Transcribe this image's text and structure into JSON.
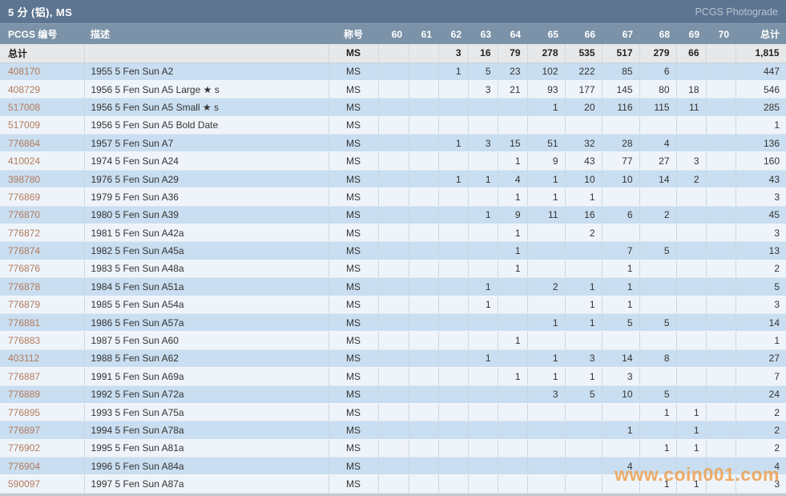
{
  "title_bar": {
    "title": "5 分 (铝), MS",
    "right_label": "PCGS Photograde"
  },
  "watermark": "www.coin001.com",
  "colors": {
    "title_bar_bg": "#5d7591",
    "header_bg": "#7b92a8",
    "total_row_bg": "#e7e8ea",
    "row_odd_bg": "#c9def0",
    "row_even_bg": "#eef4fa",
    "pcgs_link": "#b4795b",
    "watermark": "#efa254"
  },
  "table": {
    "headers": {
      "pcgs": "PCGS 编号",
      "desc": "描述",
      "designation": "称号",
      "total": "总计"
    },
    "grade_columns": [
      "60",
      "61",
      "62",
      "63",
      "64",
      "65",
      "66",
      "67",
      "68",
      "69",
      "70"
    ],
    "total_row": {
      "label": "总计",
      "designation": "MS",
      "grades": {
        "62": "3",
        "63": "16",
        "64": "79",
        "65": "278",
        "66": "535",
        "67": "517",
        "68": "279",
        "69": "66"
      },
      "total": "1,815"
    },
    "rows": [
      {
        "pcgs": "408170",
        "desc": "1955 5 Fen Sun A2",
        "designation": "MS",
        "grades": {
          "62": "1",
          "63": "5",
          "64": "23",
          "65": "102",
          "66": "222",
          "67": "85",
          "68": "6"
        },
        "total": "447"
      },
      {
        "pcgs": "408729",
        "desc": "1956 5 Fen Sun A5 Large ★ s",
        "designation": "MS",
        "grades": {
          "63": "3",
          "64": "21",
          "65": "93",
          "66": "177",
          "67": "145",
          "68": "80",
          "69": "18"
        },
        "total": "546"
      },
      {
        "pcgs": "517008",
        "desc": "1956 5 Fen Sun A5 Small ★ s",
        "designation": "MS",
        "grades": {
          "65": "1",
          "66": "20",
          "67": "116",
          "68": "115",
          "69": "11"
        },
        "total": "285"
      },
      {
        "pcgs": "517009",
        "desc": "1956 5 Fen Sun A5 Bold Date",
        "designation": "MS",
        "grades": {},
        "total": "1"
      },
      {
        "pcgs": "776864",
        "desc": "1957 5 Fen Sun A7",
        "designation": "MS",
        "grades": {
          "62": "1",
          "63": "3",
          "64": "15",
          "65": "51",
          "66": "32",
          "67": "28",
          "68": "4"
        },
        "total": "136"
      },
      {
        "pcgs": "410024",
        "desc": "1974 5 Fen Sun A24",
        "designation": "MS",
        "grades": {
          "64": "1",
          "65": "9",
          "66": "43",
          "67": "77",
          "68": "27",
          "69": "3"
        },
        "total": "160"
      },
      {
        "pcgs": "398780",
        "desc": "1976 5 Fen Sun A29",
        "designation": "MS",
        "grades": {
          "62": "1",
          "63": "1",
          "64": "4",
          "65": "1",
          "66": "10",
          "67": "10",
          "68": "14",
          "69": "2"
        },
        "total": "43"
      },
      {
        "pcgs": "776869",
        "desc": "1979 5 Fen Sun A36",
        "designation": "MS",
        "grades": {
          "64": "1",
          "65": "1",
          "66": "1"
        },
        "total": "3"
      },
      {
        "pcgs": "776870",
        "desc": "1980 5 Fen Sun A39",
        "designation": "MS",
        "grades": {
          "63": "1",
          "64": "9",
          "65": "11",
          "66": "16",
          "67": "6",
          "68": "2"
        },
        "total": "45"
      },
      {
        "pcgs": "776872",
        "desc": "1981 5 Fen Sun A42a",
        "designation": "MS",
        "grades": {
          "64": "1",
          "66": "2"
        },
        "total": "3"
      },
      {
        "pcgs": "776874",
        "desc": "1982 5 Fen Sun A45a",
        "designation": "MS",
        "grades": {
          "64": "1",
          "67": "7",
          "68": "5"
        },
        "total": "13"
      },
      {
        "pcgs": "776876",
        "desc": "1983 5 Fen Sun A48a",
        "designation": "MS",
        "grades": {
          "64": "1",
          "67": "1"
        },
        "total": "2"
      },
      {
        "pcgs": "776878",
        "desc": "1984 5 Fen Sun A51a",
        "designation": "MS",
        "grades": {
          "63": "1",
          "65": "2",
          "66": "1",
          "67": "1"
        },
        "total": "5"
      },
      {
        "pcgs": "776879",
        "desc": "1985 5 Fen Sun A54a",
        "designation": "MS",
        "grades": {
          "63": "1",
          "66": "1",
          "67": "1"
        },
        "total": "3"
      },
      {
        "pcgs": "776881",
        "desc": "1986 5 Fen Sun A57a",
        "designation": "MS",
        "grades": {
          "65": "1",
          "66": "1",
          "67": "5",
          "68": "5"
        },
        "total": "14"
      },
      {
        "pcgs": "776883",
        "desc": "1987 5 Fen Sun A60",
        "designation": "MS",
        "grades": {
          "64": "1"
        },
        "total": "1"
      },
      {
        "pcgs": "403112",
        "desc": "1988 5 Fen Sun A62",
        "designation": "MS",
        "grades": {
          "63": "1",
          "65": "1",
          "66": "3",
          "67": "14",
          "68": "8"
        },
        "total": "27"
      },
      {
        "pcgs": "776887",
        "desc": "1991 5 Fen Sun A69a",
        "designation": "MS",
        "grades": {
          "64": "1",
          "65": "1",
          "66": "1",
          "67": "3"
        },
        "total": "7"
      },
      {
        "pcgs": "776889",
        "desc": "1992 5 Fen Sun A72a",
        "designation": "MS",
        "grades": {
          "65": "3",
          "66": "5",
          "67": "10",
          "68": "5"
        },
        "total": "24"
      },
      {
        "pcgs": "776895",
        "desc": "1993 5 Fen Sun A75a",
        "designation": "MS",
        "grades": {
          "68": "1",
          "69": "1"
        },
        "total": "2"
      },
      {
        "pcgs": "776897",
        "desc": "1994 5 Fen Sun A78a",
        "designation": "MS",
        "grades": {
          "67": "1",
          "69": "1"
        },
        "total": "2"
      },
      {
        "pcgs": "776902",
        "desc": "1995 5 Fen Sun A81a",
        "designation": "MS",
        "grades": {
          "68": "1",
          "69": "1"
        },
        "total": "2"
      },
      {
        "pcgs": "776904",
        "desc": "1996 5 Fen Sun A84a",
        "designation": "MS",
        "grades": {
          "67": "4"
        },
        "total": "4"
      },
      {
        "pcgs": "590097",
        "desc": "1997 5 Fen Sun A87a",
        "designation": "MS",
        "grades": {
          "68": "1",
          "69": "1"
        },
        "total": "3"
      }
    ]
  }
}
